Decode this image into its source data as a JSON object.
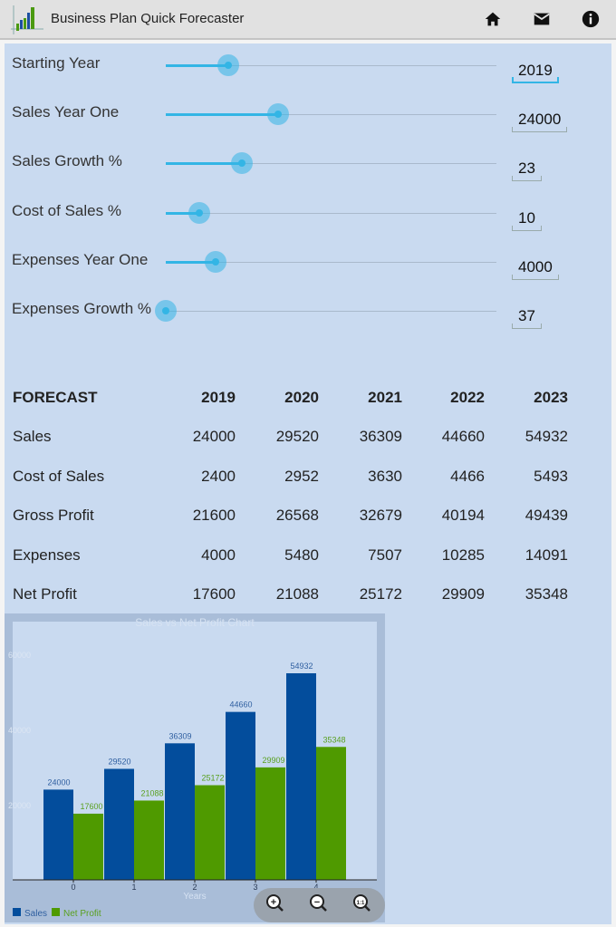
{
  "header": {
    "title": "Business Plan Quick Forecaster",
    "icons": [
      "app-logo-icon",
      "home-icon",
      "mail-icon",
      "info-icon"
    ]
  },
  "inputs": [
    {
      "label": "Starting Year",
      "value": "2019",
      "slider": 0.19
    },
    {
      "label": "Sales Year One",
      "value": "24000",
      "slider": 0.34
    },
    {
      "label": "Sales Growth %",
      "value": "23",
      "slider": 0.23
    },
    {
      "label": "Cost of Sales %",
      "value": "10",
      "slider": 0.1
    },
    {
      "label": "Expenses Year One",
      "value": "4000",
      "slider": 0.15
    },
    {
      "label": "Expenses Growth %",
      "value": "37",
      "slider": 0.0
    }
  ],
  "forecast": {
    "header": [
      "FORECAST",
      "2019",
      "2020",
      "2021",
      "2022",
      "2023"
    ],
    "rows": [
      {
        "label": "Sales",
        "values": [
          "24000",
          "29520",
          "36309",
          "44660",
          "54932"
        ]
      },
      {
        "label": "Cost of Sales",
        "values": [
          "2400",
          "2952",
          "3630",
          "4466",
          "5493"
        ]
      },
      {
        "label": "Gross Profit",
        "values": [
          "21600",
          "26568",
          "32679",
          "40194",
          "49439"
        ]
      },
      {
        "label": "Expenses",
        "values": [
          "4000",
          "5480",
          "7507",
          "10285",
          "14091"
        ]
      },
      {
        "label": "Net Profit",
        "values": [
          "17600",
          "21088",
          "25172",
          "29909",
          "35348"
        ]
      }
    ]
  },
  "chart_data": {
    "type": "bar",
    "title": "Sales vs Net Profit Chart",
    "xlabel": "Years",
    "ylabel": "",
    "categories": [
      "0",
      "1",
      "2",
      "3",
      "4"
    ],
    "yticks": [
      "20000",
      "40000",
      "60000"
    ],
    "ylim": [
      0,
      69000
    ],
    "series": [
      {
        "name": "Sales",
        "color": "#034d9c",
        "values": [
          24000,
          29520,
          36309,
          44660,
          54932
        ]
      },
      {
        "name": "Net Profit",
        "color": "#4f9a00",
        "values": [
          17600,
          21088,
          25172,
          29909,
          35348
        ]
      }
    ],
    "legend": "bottom-left"
  },
  "chart_controls": [
    "zoom-in-icon",
    "zoom-out-icon",
    "zoom-reset-icon"
  ]
}
